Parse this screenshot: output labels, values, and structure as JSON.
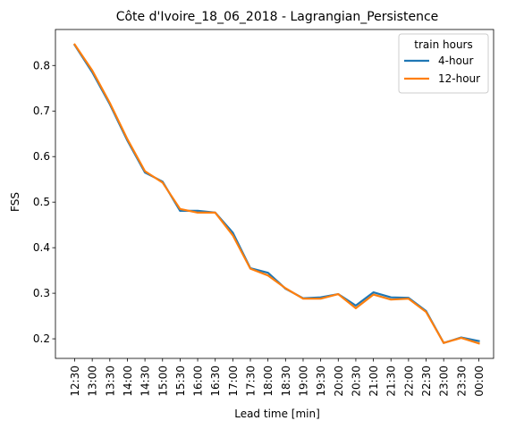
{
  "chart_data": {
    "type": "line",
    "title": "Côte d'Ivoire_18_06_2018 - Lagrangian_Persistence",
    "xlabel": "Lead time [min]",
    "ylabel": "FSS",
    "categories": [
      "12:30",
      "13:00",
      "13:30",
      "14:00",
      "14:30",
      "15:00",
      "15:30",
      "16:00",
      "16:30",
      "17:00",
      "17:30",
      "18:00",
      "18:30",
      "19:00",
      "19:30",
      "20:00",
      "20:30",
      "21:00",
      "21:30",
      "22:00",
      "22:30",
      "23:00",
      "23:30",
      "00:00"
    ],
    "ylim": [
      0.157,
      0.879
    ],
    "yticks": [
      0.2,
      0.3,
      0.4,
      0.5,
      0.6,
      0.7,
      0.8
    ],
    "grid": false,
    "legend": {
      "title": "train hours",
      "placement": "top-right"
    },
    "series": [
      {
        "name": "4-hour",
        "color": "#1f77b4",
        "values": [
          0.845,
          0.785,
          0.715,
          0.635,
          0.565,
          0.545,
          0.481,
          0.481,
          0.477,
          0.433,
          0.355,
          0.345,
          0.31,
          0.289,
          0.291,
          0.298,
          0.273,
          0.302,
          0.291,
          0.29,
          0.261,
          0.191,
          0.203,
          0.195
        ]
      },
      {
        "name": "12-hour",
        "color": "#ff7f0e",
        "values": [
          0.846,
          0.789,
          0.718,
          0.638,
          0.568,
          0.543,
          0.485,
          0.477,
          0.477,
          0.427,
          0.354,
          0.339,
          0.311,
          0.288,
          0.288,
          0.298,
          0.267,
          0.297,
          0.286,
          0.288,
          0.259,
          0.191,
          0.202,
          0.19
        ]
      }
    ]
  }
}
